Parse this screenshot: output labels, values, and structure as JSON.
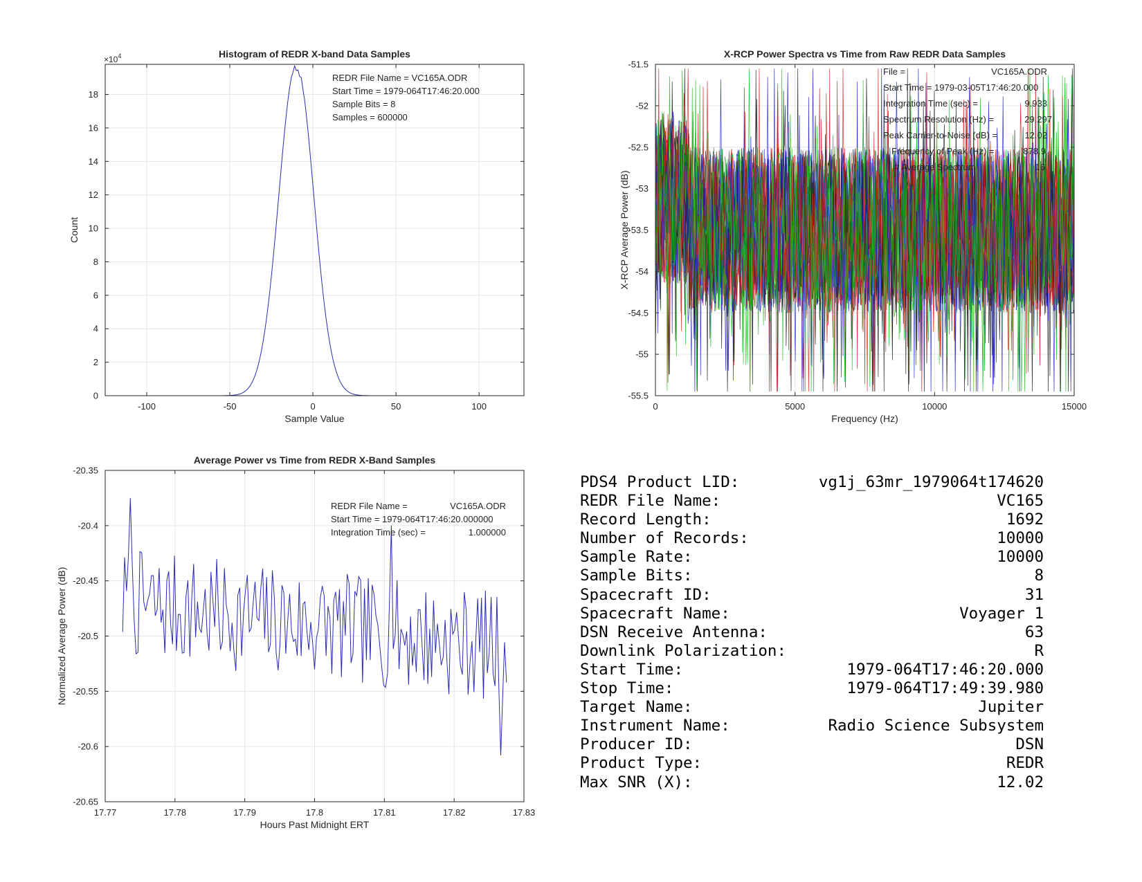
{
  "chart_data": [
    {
      "type": "histogram",
      "title": "Histogram of REDR X-band Data Samples",
      "xlabel": "Sample Value",
      "ylabel": "Count",
      "y_multiplier": "×10",
      "y_multiplier_exp": "4",
      "xlim": [
        -125,
        127
      ],
      "ylim": [
        0,
        19.8
      ],
      "xticks": [
        -100,
        -50,
        0,
        50,
        100
      ],
      "yticks": [
        0,
        2,
        4,
        6,
        8,
        10,
        12,
        14,
        16,
        18
      ],
      "grid": true,
      "color": "#2a2ab4",
      "series": [
        {
          "peak": 19.8,
          "center": -10,
          "sigma": 10.5
        }
      ],
      "annotations": [
        "REDR File Name = VC165A.ODR",
        "Start Time = 1979-064T17:46:20.000",
        "Sample Bits = 8",
        "Samples = 600000"
      ]
    },
    {
      "type": "line",
      "title": "X-RCP Power Spectra vs Time from Raw REDR Data Samples",
      "xlabel": "Frequency (Hz)",
      "ylabel": "X-RCP Average Power (dB)",
      "xlim": [
        0,
        15000
      ],
      "ylim": [
        -55.5,
        -51.5
      ],
      "xticks": [
        0,
        5000,
        10000,
        15000
      ],
      "yticks": [
        -51.5,
        -52,
        -52.5,
        -53,
        -53.5,
        -54,
        -54.5,
        -55,
        -55.5
      ],
      "grid": true,
      "series_count": 16,
      "series_colors": [
        "#1e1e1e",
        "#2020c8",
        "#d02020",
        "#20c020"
      ],
      "annotations": [
        [
          "File =",
          "VC165A.ODR"
        ],
        [
          "Start Time = 1979-03-05T17:46:20.000",
          ""
        ],
        [
          "Integration Time (sec) =",
          "9.933"
        ],
        [
          "Spectrum Resolution (Hz) =",
          "29.297"
        ],
        [
          "Peak Carrier-to-Noise (dB) =",
          "12.02"
        ],
        [
          "Frequency of Peak (Hz) =",
          "878.9"
        ],
        [
          "# Average Spectrum",
          "16"
        ]
      ]
    },
    {
      "type": "line",
      "title": "Average Power vs Time from REDR X-Band Samples",
      "xlabel": "Hours Past Midnight ERT",
      "ylabel": "Normalized Average Power (dB)",
      "xlim": [
        17.77,
        17.83
      ],
      "ylim": [
        -20.65,
        -20.35
      ],
      "xticks": [
        17.77,
        17.78,
        17.79,
        17.8,
        17.81,
        17.82,
        17.83
      ],
      "yticks": [
        -20.35,
        -20.4,
        -20.45,
        -20.5,
        -20.55,
        -20.6,
        -20.65
      ],
      "grid": true,
      "color": "#2a2ab4",
      "x_start": 17.7725,
      "x_end": 17.8275,
      "annotations": [
        [
          "REDR File Name =",
          "VC165A.ODR"
        ],
        [
          "Start Time = 1979-064T17:46:20.000000",
          ""
        ],
        [
          "Integration Time (sec) =",
          "1.000000"
        ]
      ]
    }
  ],
  "info_table": [
    {
      "label": "PDS4 Product LID:",
      "value": "vg1j_63mr_1979064t174620"
    },
    {
      "label": "REDR File Name:",
      "value": "VC165"
    },
    {
      "label": "Record Length:",
      "value": "1692"
    },
    {
      "label": "Number of Records:",
      "value": "10000"
    },
    {
      "label": "Sample Rate:",
      "value": "10000"
    },
    {
      "label": "Sample Bits:",
      "value": "8"
    },
    {
      "label": "Spacecraft ID:",
      "value": "31"
    },
    {
      "label": "Spacecraft Name:",
      "value": "Voyager 1"
    },
    {
      "label": "DSN Receive Antenna:",
      "value": "63"
    },
    {
      "label": "Downlink Polarization:",
      "value": "R"
    },
    {
      "label": "Start Time:",
      "value": "1979-064T17:46:20.000"
    },
    {
      "label": "Stop Time:",
      "value": "1979-064T17:49:39.980"
    },
    {
      "label": "Target Name:",
      "value": "Jupiter"
    },
    {
      "label": "Instrument Name:",
      "value": "Radio Science Subsystem"
    },
    {
      "label": "Producer ID:",
      "value": "DSN"
    },
    {
      "label": "Product Type:",
      "value": "REDR"
    },
    {
      "label": "Max SNR (X):",
      "value": "12.02"
    }
  ]
}
